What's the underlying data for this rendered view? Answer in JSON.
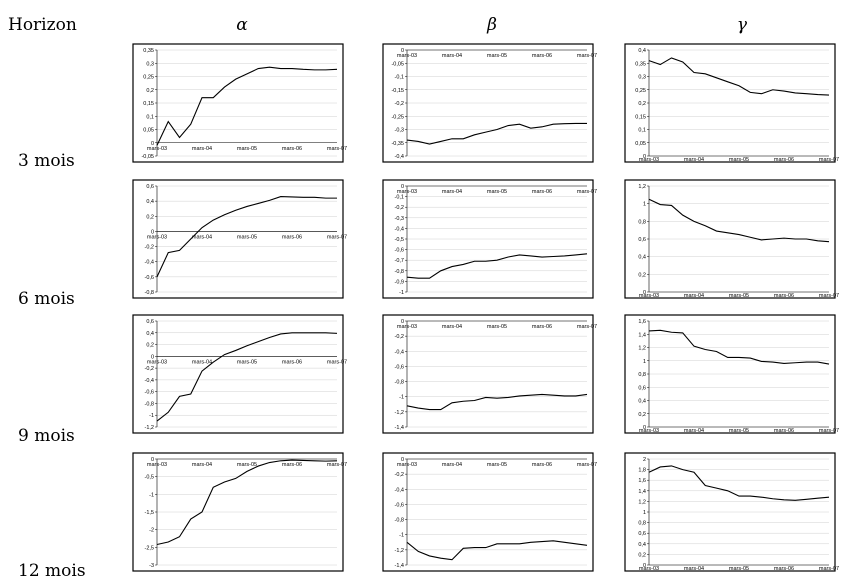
{
  "columns": [
    "Horizon",
    "α",
    "β",
    "γ"
  ],
  "rows": [
    "3 mois",
    "6 mois",
    "9 mois",
    "12 mois"
  ],
  "chart_data": [
    {
      "type": "line",
      "color": "#000000",
      "grid": true,
      "categories": [
        "mars-03",
        null,
        null,
        null,
        "mars-04",
        null,
        null,
        null,
        "mars-05",
        null,
        null,
        null,
        "mars-06",
        null,
        null,
        null,
        "mars-07"
      ],
      "values": [
        -0.01,
        0.08,
        0.02,
        0.07,
        0.17,
        0.17,
        0.21,
        0.24,
        0.26,
        0.28,
        0.285,
        0.28,
        0.28,
        0.277,
        0.275,
        0.275,
        0.277
      ],
      "ylim": [
        -0.05,
        0.35
      ],
      "yticks": [
        {
          "value": -0.05,
          "label": "-0,05"
        },
        0,
        {
          "value": 0.05,
          "label": "0,05"
        },
        {
          "value": 0.1,
          "label": "0,1"
        },
        {
          "value": 0.15,
          "label": "0,15"
        },
        {
          "value": 0.2,
          "label": "0,2"
        },
        {
          "value": 0.25,
          "label": "0,25"
        },
        {
          "value": 0.3,
          "label": "0,3"
        },
        {
          "value": 0.35,
          "label": "0,35"
        }
      ]
    },
    {
      "type": "line",
      "color": "#000000",
      "grid": true,
      "categories": [
        "mars-03",
        null,
        null,
        null,
        "mars-04",
        null,
        null,
        null,
        "mars-05",
        null,
        null,
        null,
        "mars-06",
        null,
        null,
        null,
        "mars-07"
      ],
      "values": [
        -0.34,
        -0.345,
        -0.355,
        -0.345,
        -0.335,
        -0.335,
        -0.32,
        -0.31,
        -0.3,
        -0.285,
        -0.28,
        -0.295,
        -0.29,
        -0.28,
        -0.278,
        -0.277,
        -0.277
      ],
      "ylim": [
        -0.4,
        0
      ],
      "yticks": [
        0,
        {
          "value": -0.05,
          "label": "-0,05"
        },
        {
          "value": -0.1,
          "label": "-0,1"
        },
        {
          "value": -0.15,
          "label": "-0,15"
        },
        {
          "value": -0.2,
          "label": "-0,2"
        },
        {
          "value": -0.25,
          "label": "-0,25"
        },
        {
          "value": -0.3,
          "label": "-0,3"
        },
        {
          "value": -0.35,
          "label": "-0,35"
        },
        {
          "value": -0.4,
          "label": "-0,4"
        }
      ]
    },
    {
      "type": "line",
      "color": "#000000",
      "grid": true,
      "categories": [
        "mars-03",
        null,
        null,
        null,
        "mars-04",
        null,
        null,
        null,
        "mars-05",
        null,
        null,
        null,
        "mars-06",
        null,
        null,
        null,
        "mars-07"
      ],
      "values": [
        0.36,
        0.345,
        0.37,
        0.355,
        0.315,
        0.31,
        0.295,
        0.28,
        0.265,
        0.24,
        0.235,
        0.25,
        0.245,
        0.238,
        0.235,
        0.232,
        0.23
      ],
      "ylim": [
        0,
        0.4
      ],
      "yticks": [
        0,
        {
          "value": 0.05,
          "label": "0,05"
        },
        {
          "value": 0.1,
          "label": "0,1"
        },
        {
          "value": 0.15,
          "label": "0,15"
        },
        {
          "value": 0.2,
          "label": "0,2"
        },
        {
          "value": 0.25,
          "label": "0,25"
        },
        {
          "value": 0.3,
          "label": "0,3"
        },
        {
          "value": 0.35,
          "label": "0,35"
        },
        {
          "value": 0.4,
          "label": "0,4"
        }
      ]
    },
    {
      "type": "line",
      "color": "#000000",
      "grid": true,
      "categories": [
        "mars-03",
        null,
        null,
        null,
        "mars-04",
        null,
        null,
        null,
        "mars-05",
        null,
        null,
        null,
        "mars-06",
        null,
        null,
        null,
        "mars-07"
      ],
      "values": [
        -0.6,
        -0.28,
        -0.25,
        -0.1,
        0.05,
        0.15,
        0.22,
        0.28,
        0.33,
        0.37,
        0.41,
        0.46,
        0.455,
        0.45,
        0.45,
        0.44,
        0.44
      ],
      "ylim": [
        -0.8,
        0.6
      ],
      "yticks": [
        {
          "value": -0.8,
          "label": "-0,8"
        },
        {
          "value": -0.6,
          "label": "-0,6"
        },
        {
          "value": -0.4,
          "label": "-0,4"
        },
        {
          "value": -0.2,
          "label": "-0,2"
        },
        0,
        {
          "value": 0.2,
          "label": "0,2"
        },
        {
          "value": 0.4,
          "label": "0,4"
        },
        {
          "value": 0.6,
          "label": "0,6"
        }
      ]
    },
    {
      "type": "line",
      "color": "#000000",
      "grid": true,
      "categories": [
        "mars-03",
        null,
        null,
        null,
        "mars-04",
        null,
        null,
        null,
        "mars-05",
        null,
        null,
        null,
        "mars-06",
        null,
        null,
        null,
        "mars-07"
      ],
      "values": [
        -0.86,
        -0.87,
        -0.87,
        -0.8,
        -0.76,
        -0.74,
        -0.71,
        -0.71,
        -0.7,
        -0.67,
        -0.65,
        -0.66,
        -0.67,
        -0.665,
        -0.66,
        -0.65,
        -0.64
      ],
      "ylim": [
        -1,
        0
      ],
      "yticks": [
        0,
        {
          "value": -0.1,
          "label": "-0,1"
        },
        {
          "value": -0.2,
          "label": "-0,2"
        },
        {
          "value": -0.3,
          "label": "-0,3"
        },
        {
          "value": -0.4,
          "label": "-0,4"
        },
        {
          "value": -0.5,
          "label": "-0,5"
        },
        {
          "value": -0.6,
          "label": "-0,6"
        },
        {
          "value": -0.7,
          "label": "-0,7"
        },
        {
          "value": -0.8,
          "label": "-0,8"
        },
        {
          "value": -0.9,
          "label": "-0,9"
        },
        -1
      ]
    },
    {
      "type": "line",
      "color": "#000000",
      "grid": true,
      "categories": [
        "mars-03",
        null,
        null,
        null,
        "mars-04",
        null,
        null,
        null,
        "mars-05",
        null,
        null,
        null,
        "mars-06",
        null,
        null,
        null,
        "mars-07"
      ],
      "values": [
        1.05,
        0.99,
        0.98,
        0.87,
        0.8,
        0.75,
        0.69,
        0.67,
        0.65,
        0.62,
        0.59,
        0.6,
        0.61,
        0.6,
        0.6,
        0.58,
        0.57
      ],
      "ylim": [
        0,
        1.2
      ],
      "yticks": [
        0,
        {
          "value": 0.2,
          "label": "0,2"
        },
        {
          "value": 0.4,
          "label": "0,4"
        },
        {
          "value": 0.6,
          "label": "0,6"
        },
        {
          "value": 0.8,
          "label": "0,8"
        },
        1,
        {
          "value": 1.2,
          "label": "1,2"
        }
      ]
    },
    {
      "type": "line",
      "color": "#000000",
      "grid": true,
      "categories": [
        "mars-03",
        null,
        null,
        null,
        "mars-04",
        null,
        null,
        null,
        "mars-05",
        null,
        null,
        null,
        "mars-06",
        null,
        null,
        null,
        "mars-07"
      ],
      "values": [
        -1.1,
        -0.95,
        -0.68,
        -0.64,
        -0.25,
        -0.1,
        0.03,
        0.1,
        0.18,
        0.25,
        0.32,
        0.38,
        0.4,
        0.4,
        0.4,
        0.4,
        0.39
      ],
      "ylim": [
        -1.2,
        0.6
      ],
      "yticks": [
        {
          "value": -1.2,
          "label": "-1,2"
        },
        -1,
        {
          "value": -0.8,
          "label": "-0,8"
        },
        {
          "value": -0.6,
          "label": "-0,6"
        },
        {
          "value": -0.4,
          "label": "-0,4"
        },
        {
          "value": -0.2,
          "label": "-0,2"
        },
        0,
        {
          "value": 0.2,
          "label": "0,2"
        },
        {
          "value": 0.4,
          "label": "0,4"
        },
        {
          "value": 0.6,
          "label": "0,6"
        }
      ]
    },
    {
      "type": "line",
      "color": "#000000",
      "grid": true,
      "categories": [
        "mars-03",
        null,
        null,
        null,
        "mars-04",
        null,
        null,
        null,
        "mars-05",
        null,
        null,
        null,
        "mars-06",
        null,
        null,
        null,
        "mars-07"
      ],
      "values": [
        -1.12,
        -1.15,
        -1.17,
        -1.17,
        -1.08,
        -1.06,
        -1.05,
        -1.01,
        -1.02,
        -1.01,
        -0.99,
        -0.98,
        -0.97,
        -0.98,
        -0.99,
        -0.99,
        -0.97
      ],
      "ylim": [
        -1.4,
        0
      ],
      "yticks": [
        0,
        {
          "value": -0.2,
          "label": "-0,2"
        },
        {
          "value": -0.4,
          "label": "-0,4"
        },
        {
          "value": -0.6,
          "label": "-0,6"
        },
        {
          "value": -0.8,
          "label": "-0,8"
        },
        -1,
        {
          "value": -1.2,
          "label": "-1,2"
        },
        {
          "value": -1.4,
          "label": "-1,4"
        }
      ]
    },
    {
      "type": "line",
      "color": "#000000",
      "grid": true,
      "categories": [
        "mars-03",
        null,
        null,
        null,
        "mars-04",
        null,
        null,
        null,
        "mars-05",
        null,
        null,
        null,
        "mars-06",
        null,
        null,
        null,
        "mars-07"
      ],
      "values": [
        1.45,
        1.46,
        1.43,
        1.42,
        1.22,
        1.17,
        1.14,
        1.05,
        1.05,
        1.04,
        0.99,
        0.98,
        0.96,
        0.97,
        0.98,
        0.98,
        0.95
      ],
      "ylim": [
        0,
        1.6
      ],
      "yticks": [
        0,
        {
          "value": 0.2,
          "label": "0,2"
        },
        {
          "value": 0.4,
          "label": "0,4"
        },
        {
          "value": 0.6,
          "label": "0,6"
        },
        {
          "value": 0.8,
          "label": "0,8"
        },
        1,
        {
          "value": 1.2,
          "label": "1,2"
        },
        {
          "value": 1.4,
          "label": "1,4"
        },
        {
          "value": 1.6,
          "label": "1,6"
        }
      ]
    },
    {
      "type": "line",
      "color": "#000000",
      "grid": true,
      "categories": [
        "mars-03",
        null,
        null,
        null,
        "mars-04",
        null,
        null,
        null,
        "mars-05",
        null,
        null,
        null,
        "mars-06",
        null,
        null,
        null,
        "mars-07"
      ],
      "values": [
        -2.42,
        -2.35,
        -2.2,
        -1.7,
        -1.5,
        -0.8,
        -0.65,
        -0.55,
        -0.35,
        -0.2,
        -0.1,
        -0.05,
        -0.03,
        -0.04,
        -0.05,
        -0.06,
        -0.05
      ],
      "ylim": [
        -3,
        0
      ],
      "yticks": [
        0,
        {
          "value": -0.5,
          "label": "-0,5"
        },
        -1,
        {
          "value": -1.5,
          "label": "-1,5"
        },
        -2,
        {
          "value": -2.5,
          "label": "-2,5"
        },
        -3
      ]
    },
    {
      "type": "line",
      "color": "#000000",
      "grid": true,
      "categories": [
        "mars-03",
        null,
        null,
        null,
        "mars-04",
        null,
        null,
        null,
        "mars-05",
        null,
        null,
        null,
        "mars-06",
        null,
        null,
        null,
        "mars-07"
      ],
      "values": [
        -1.1,
        -1.22,
        -1.28,
        -1.31,
        -1.33,
        -1.18,
        -1.17,
        -1.17,
        -1.12,
        -1.12,
        -1.12,
        -1.1,
        -1.09,
        -1.08,
        -1.1,
        -1.12,
        -1.14
      ],
      "ylim": [
        -1.4,
        0
      ],
      "yticks": [
        0,
        {
          "value": -0.2,
          "label": "-0,2"
        },
        {
          "value": -0.4,
          "label": "-0,4"
        },
        {
          "value": -0.6,
          "label": "-0,6"
        },
        {
          "value": -0.8,
          "label": "-0,8"
        },
        -1,
        {
          "value": -1.2,
          "label": "-1,2"
        },
        {
          "value": -1.4,
          "label": "-1,4"
        }
      ]
    },
    {
      "type": "line",
      "color": "#000000",
      "grid": true,
      "categories": [
        "mars-03",
        null,
        null,
        null,
        "mars-04",
        null,
        null,
        null,
        "mars-05",
        null,
        null,
        null,
        "mars-06",
        null,
        null,
        null,
        "mars-07"
      ],
      "values": [
        1.75,
        1.85,
        1.87,
        1.8,
        1.75,
        1.5,
        1.45,
        1.4,
        1.3,
        1.3,
        1.28,
        1.25,
        1.23,
        1.22,
        1.24,
        1.26,
        1.28
      ],
      "ylim": [
        0,
        2
      ],
      "yticks": [
        0,
        {
          "value": 0.2,
          "label": "0,2"
        },
        {
          "value": 0.4,
          "label": "0,4"
        },
        {
          "value": 0.6,
          "label": "0,6"
        },
        {
          "value": 0.8,
          "label": "0,8"
        },
        1,
        {
          "value": 1.2,
          "label": "1,2"
        },
        {
          "value": 1.4,
          "label": "1,4"
        },
        {
          "value": 1.6,
          "label": "1,6"
        },
        {
          "value": 1.8,
          "label": "1,8"
        },
        2
      ]
    }
  ]
}
